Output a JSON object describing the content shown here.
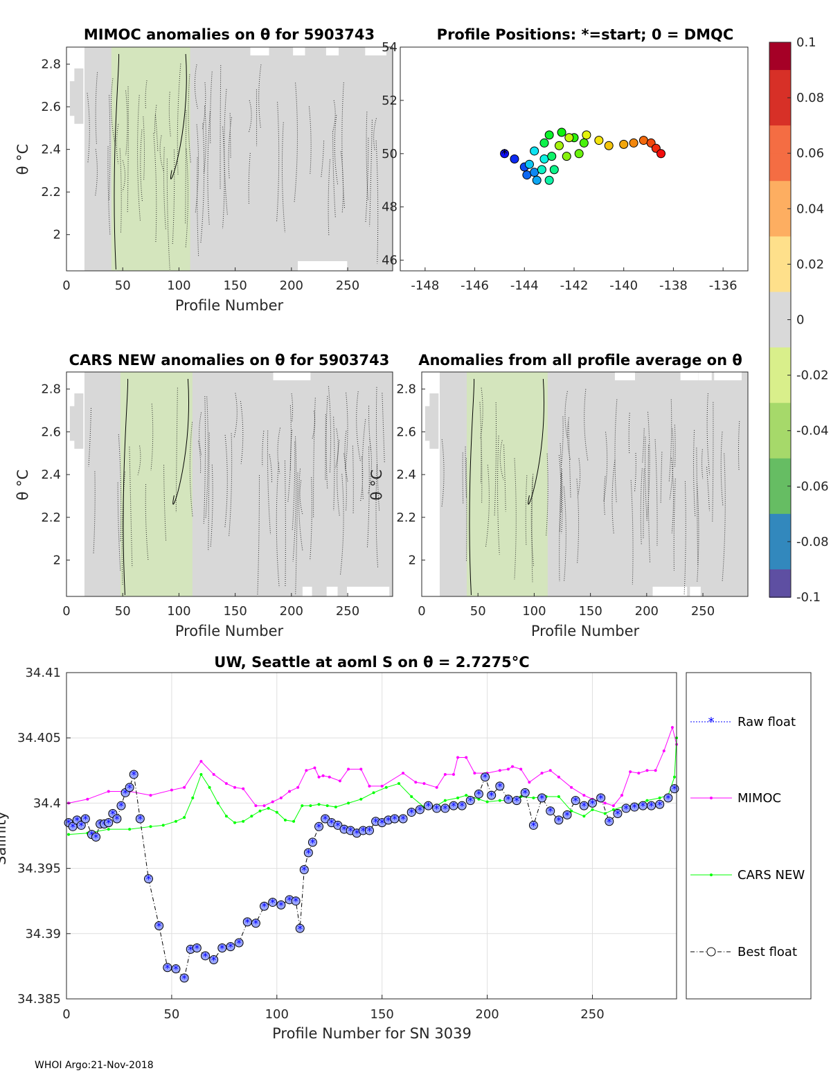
{
  "colors": {
    "bg_gray": "#d8d8d8",
    "anomaly_green": "#d4e8b8",
    "mimoc": "#ff00ff",
    "cars": "#00ff00",
    "raw": "#0000ff",
    "best_edge": "#000000",
    "best_fill": "#9aa6ff"
  },
  "chart_data": [
    {
      "id": "mimoc-anom",
      "type": "heatmap",
      "title": "MIMOC anomalies on θ  for 5903743",
      "xlabel": "Profile Number",
      "ylabel": "θ °C",
      "xlim": [
        0,
        290
      ],
      "ylim": [
        1.83,
        2.88
      ],
      "xticks": [
        "0",
        "50",
        "100",
        "150",
        "200",
        "250"
      ],
      "yticks": [
        "2",
        "2.2",
        "2.4",
        "2.6",
        "2.8"
      ],
      "anomaly_band": [
        40,
        110
      ]
    },
    {
      "id": "positions",
      "type": "scatter",
      "title": "Profile Positions: *=start; 0 = DMQC",
      "xlim": [
        -149,
        -135
      ],
      "ylim": [
        45.6,
        54
      ],
      "xticks": [
        "-148",
        "-146",
        "-144",
        "-142",
        "-140",
        "-138",
        "-136"
      ],
      "yticks": [
        "46",
        "48",
        "50",
        "52",
        "54"
      ],
      "start": [
        -144.8,
        50.0
      ],
      "track": [
        [
          -144.8,
          50.0
        ],
        [
          -144.4,
          49.8
        ],
        [
          -144.0,
          49.5
        ],
        [
          -143.9,
          49.2
        ],
        [
          -143.6,
          49.3
        ],
        [
          -143.5,
          49.0
        ],
        [
          -143.8,
          49.6
        ],
        [
          -143.6,
          50.1
        ],
        [
          -143.2,
          49.8
        ],
        [
          -143.3,
          49.4
        ],
        [
          -143.0,
          49.0
        ],
        [
          -142.8,
          49.4
        ],
        [
          -142.9,
          49.9
        ],
        [
          -143.2,
          50.4
        ],
        [
          -143.0,
          50.7
        ],
        [
          -142.5,
          50.8
        ],
        [
          -142.0,
          50.6
        ],
        [
          -141.6,
          50.4
        ],
        [
          -141.8,
          50.0
        ],
        [
          -142.3,
          49.9
        ],
        [
          -142.6,
          50.3
        ],
        [
          -142.2,
          50.6
        ],
        [
          -141.5,
          50.7
        ],
        [
          -141.0,
          50.5
        ],
        [
          -140.6,
          50.3
        ],
        [
          -140.0,
          50.35
        ],
        [
          -139.6,
          50.4
        ],
        [
          -139.2,
          50.5
        ],
        [
          -138.9,
          50.4
        ],
        [
          -138.7,
          50.2
        ],
        [
          -138.5,
          50.0
        ]
      ]
    },
    {
      "id": "colorbar",
      "type": "heatmap",
      "range": [
        -0.1,
        0.1
      ],
      "tick_labels": [
        "0.1",
        "0.08",
        "0.06",
        "0.04",
        "0.02",
        "0",
        "-0.02",
        "-0.04",
        "-0.06",
        "-0.08",
        "-0.1"
      ]
    },
    {
      "id": "cars-anom",
      "type": "heatmap",
      "title": "CARS NEW anomalies on θ for 5903743",
      "xlabel": "Profile Number",
      "ylabel": "θ °C",
      "xlim": [
        0,
        290
      ],
      "ylim": [
        1.83,
        2.88
      ],
      "xticks": [
        "0",
        "50",
        "100",
        "150",
        "200",
        "250"
      ],
      "yticks": [
        "2",
        "2.2",
        "2.4",
        "2.6",
        "2.8"
      ],
      "anomaly_band": [
        48,
        112
      ]
    },
    {
      "id": "avg-anom",
      "type": "heatmap",
      "title": "Anomalies from all profile average on θ",
      "xlabel": "Profile Number",
      "ylabel": "θ °C",
      "xlim": [
        0,
        290
      ],
      "ylim": [
        1.83,
        2.88
      ],
      "xticks": [
        "0",
        "50",
        "100",
        "150",
        "200",
        "250"
      ],
      "yticks": [
        "2",
        "2.2",
        "2.4",
        "2.6",
        "2.8"
      ],
      "anomaly_band": [
        40,
        112
      ]
    },
    {
      "id": "salinity",
      "type": "line",
      "title": "UW, Seattle at aoml S on θ = 2.7275°C",
      "xlabel": "Profile Number for SN 3039",
      "ylabel": "Salinity",
      "xlim": [
        0,
        290
      ],
      "ylim": [
        34.385,
        34.41
      ],
      "xticks": [
        "0",
        "50",
        "100",
        "150",
        "200",
        "250"
      ],
      "yticks": [
        "34.385",
        "34.39",
        "34.395",
        "34.4",
        "34.405",
        "34.41"
      ],
      "series": [
        {
          "name": "Raw float",
          "x": [
            1,
            3,
            5,
            7,
            9,
            12,
            14,
            16,
            18,
            20,
            22,
            24,
            26,
            28,
            30,
            32,
            35,
            39,
            44,
            48,
            52,
            56,
            59,
            62,
            66,
            70,
            74,
            78,
            82,
            86,
            90,
            94,
            98,
            102,
            106,
            109,
            111,
            113,
            115,
            117,
            120,
            123,
            126,
            129,
            132,
            135,
            138,
            141,
            144,
            147,
            150,
            153,
            156,
            160,
            164,
            168,
            172,
            176,
            180,
            184,
            188,
            192,
            196,
            199,
            202,
            206,
            210,
            214,
            218,
            222,
            226,
            230,
            234,
            238,
            242,
            246,
            250,
            254,
            258,
            262,
            266,
            270,
            274,
            278,
            282,
            286,
            289
          ],
          "values": [
            34.3985,
            34.3982,
            34.3987,
            34.3983,
            34.3988,
            34.3976,
            34.3974,
            34.3984,
            34.3984,
            34.3985,
            34.3992,
            34.3988,
            34.3998,
            34.4008,
            34.4012,
            34.4022,
            34.3988,
            34.3942,
            34.3906,
            34.3874,
            34.3873,
            34.3866,
            34.3888,
            34.3889,
            34.3883,
            34.388,
            34.3889,
            34.389,
            34.3893,
            34.3909,
            34.3908,
            34.3921,
            34.3924,
            34.3922,
            34.3926,
            34.3925,
            34.3904,
            34.3949,
            34.3962,
            34.397,
            34.3982,
            34.3988,
            34.3985,
            34.3983,
            34.398,
            34.3979,
            34.3977,
            34.3979,
            34.3979,
            34.3986,
            34.3985,
            34.3987,
            34.3988,
            34.3988,
            34.3993,
            34.3995,
            34.3998,
            34.3996,
            34.3996,
            34.3998,
            34.3998,
            34.4002,
            34.4007,
            34.402,
            34.4006,
            34.4013,
            34.4003,
            34.4002,
            34.4008,
            34.3983,
            34.4004,
            34.3994,
            34.3987,
            34.3991,
            34.4002,
            34.3998,
            34.4,
            34.4004,
            34.3986,
            34.3992,
            34.3996,
            34.3997,
            34.3998,
            34.3998,
            34.3999,
            34.4004,
            34.4011
          ]
        },
        {
          "name": "MIMOC",
          "x": [
            1,
            10,
            20,
            30,
            40,
            50,
            56,
            64,
            70,
            76,
            80,
            84,
            90,
            94,
            98,
            102,
            106,
            110,
            114,
            118,
            120,
            122,
            125,
            130,
            134,
            140,
            144,
            150,
            160,
            166,
            170,
            176,
            180,
            184,
            186,
            190,
            194,
            200,
            206,
            210,
            212,
            216,
            220,
            226,
            230,
            234,
            240,
            246,
            250,
            256,
            260,
            264,
            268,
            272,
            276,
            280,
            284,
            288,
            290
          ],
          "values": [
            34.4,
            34.4003,
            34.4009,
            34.4009,
            34.4006,
            34.401,
            34.4012,
            34.4032,
            34.4022,
            34.4015,
            34.4012,
            34.4011,
            34.3998,
            34.3998,
            34.4001,
            34.4004,
            34.4009,
            34.4012,
            34.4025,
            34.4027,
            34.402,
            34.4021,
            34.402,
            34.4017,
            34.4026,
            34.4026,
            34.4013,
            34.4013,
            34.4023,
            34.4016,
            34.4015,
            34.4012,
            34.4022,
            34.4022,
            34.4035,
            34.4035,
            34.4023,
            34.4023,
            34.4025,
            34.4026,
            34.4028,
            34.4026,
            34.4016,
            34.4023,
            34.4025,
            34.402,
            34.4012,
            34.4006,
            34.4003,
            34.4,
            34.3998,
            34.4006,
            34.4024,
            34.4023,
            34.4025,
            34.4025,
            34.404,
            34.4058,
            34.4045
          ]
        },
        {
          "name": "CARS NEW",
          "x": [
            1,
            10,
            20,
            30,
            40,
            46,
            52,
            56,
            60,
            64,
            68,
            72,
            76,
            80,
            84,
            88,
            92,
            96,
            100,
            104,
            108,
            112,
            116,
            120,
            124,
            128,
            134,
            140,
            146,
            152,
            158,
            164,
            170,
            176,
            180,
            186,
            190,
            196,
            200,
            206,
            210,
            216,
            222,
            228,
            234,
            240,
            246,
            250,
            256,
            260,
            266,
            270,
            276,
            282,
            286,
            289,
            290
          ],
          "values": [
            34.3976,
            34.3977,
            34.398,
            34.398,
            34.3982,
            34.3983,
            34.3986,
            34.3989,
            34.4004,
            34.4022,
            34.4012,
            34.4,
            34.399,
            34.3985,
            34.3986,
            34.399,
            34.3994,
            34.3996,
            34.3993,
            34.3987,
            34.3986,
            34.3998,
            34.3998,
            34.3999,
            34.3998,
            34.3997,
            34.4,
            34.4003,
            34.4008,
            34.4012,
            34.4015,
            34.4005,
            34.3997,
            34.3998,
            34.4002,
            34.4004,
            34.4006,
            34.4003,
            34.4001,
            34.4002,
            34.4002,
            34.4005,
            34.4004,
            34.4005,
            34.4005,
            34.3994,
            34.399,
            34.3995,
            34.3992,
            34.3995,
            34.3998,
            34.3998,
            34.4002,
            34.4004,
            34.4006,
            34.402,
            34.405
          ]
        }
      ]
    }
  ],
  "legend": {
    "raw": "Raw float",
    "mimoc": "MIMOC",
    "cars": "CARS NEW",
    "best": "Best float"
  },
  "footer": "WHOI Argo:21-Nov-2018"
}
